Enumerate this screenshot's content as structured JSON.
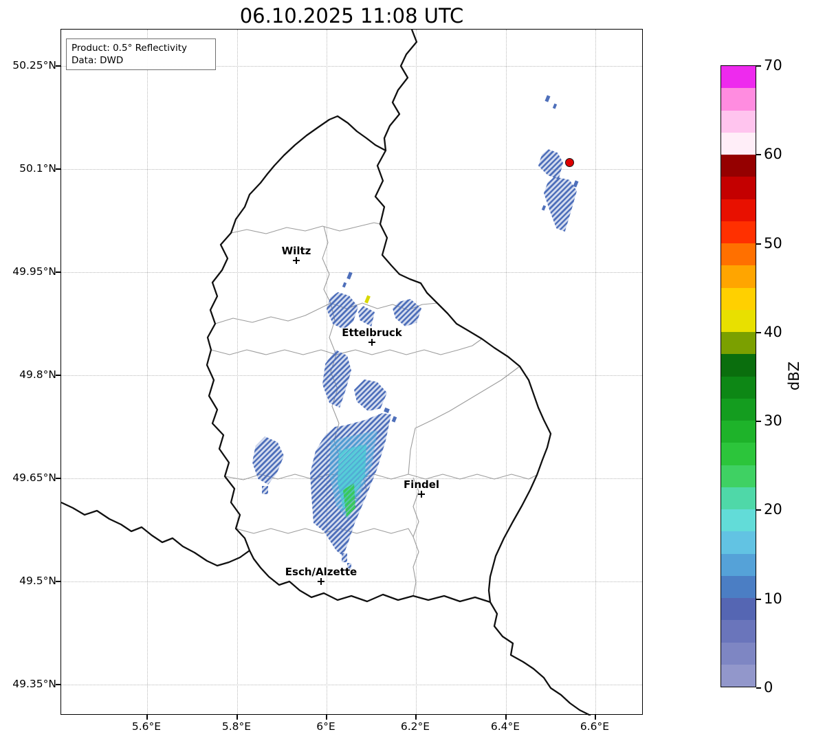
{
  "title": "06.10.2025 11:08 UTC",
  "info_box": {
    "product_line": "Product: 0.5° Reflectivity",
    "data_line": "Data: DWD"
  },
  "axes": {
    "lat_labels": [
      "50.25°N",
      "50.1°N",
      "49.95°N",
      "49.8°N",
      "49.65°N",
      "49.5°N",
      "49.35°N"
    ],
    "lon_labels": [
      "5.6°E",
      "5.8°E",
      "6°E",
      "6.2°E",
      "6.4°E",
      "6.6°E"
    ]
  },
  "cities": [
    {
      "name": "Wiltz"
    },
    {
      "name": "Ettelbruck"
    },
    {
      "name": "Findel"
    },
    {
      "name": "Esch/Alzette"
    }
  ],
  "colorbar": {
    "label": "dBZ",
    "tick_labels": [
      "0",
      "10",
      "20",
      "30",
      "40",
      "50",
      "60",
      "70"
    ],
    "min": 0,
    "max": 70,
    "colors_bottom_to_top": [
      "#9297cb",
      "#7e86c3",
      "#6a75bb",
      "#5566b3",
      "#4b7ec4",
      "#55a2d8",
      "#62c3e3",
      "#62dcd8",
      "#4fd8a8",
      "#3fd163",
      "#2cc53b",
      "#1eb32a",
      "#149d1f",
      "#0d8715",
      "#0a6e0d",
      "#7ba000",
      "#e8e000",
      "#ffd000",
      "#ffa500",
      "#ff7000",
      "#ff3000",
      "#e81000",
      "#c40000",
      "#950000",
      "#ffeef8",
      "#ffc4ee",
      "#ff8ce0",
      "#ee2aee"
    ]
  },
  "radar": {
    "site_marker_color": "#dd0000",
    "echo_colors": {
      "light": "#4e6fba",
      "moderate": "#4f9ad2",
      "enhanced": "#55ccd8",
      "strong": "#38c95a",
      "isolated_40dbz": "#d8d800"
    }
  }
}
